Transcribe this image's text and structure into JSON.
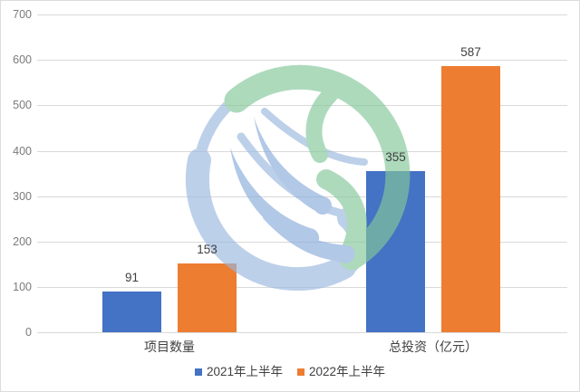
{
  "chart_data": {
    "type": "bar",
    "title": "",
    "categories": [
      "项目数量",
      "总投资（亿元）"
    ],
    "series": [
      {
        "name": "2021年上半年",
        "color": "#4472C4",
        "values": [
          91,
          355
        ]
      },
      {
        "name": "2022年上半年",
        "color": "#ED7D31",
        "values": [
          153,
          587
        ]
      }
    ],
    "ylim": [
      0,
      700
    ],
    "yticks": [
      0,
      100,
      200,
      300,
      400,
      500,
      600,
      700
    ],
    "grid": true,
    "legend_position": "bottom",
    "xlabel": "",
    "ylabel": ""
  },
  "style": {
    "gridline_color": "#D9D9D9",
    "axis_text_color": "#7a7a7a",
    "label_text_color": "#3f3f3f",
    "background": "#FFFFFF",
    "border_color": "#dcdcdc"
  },
  "watermark": {
    "icon": "swirl-logo-watermark",
    "green": "#85C79B",
    "blue_light": "#9BB8DE",
    "blue_deep": "#8AACDC"
  }
}
